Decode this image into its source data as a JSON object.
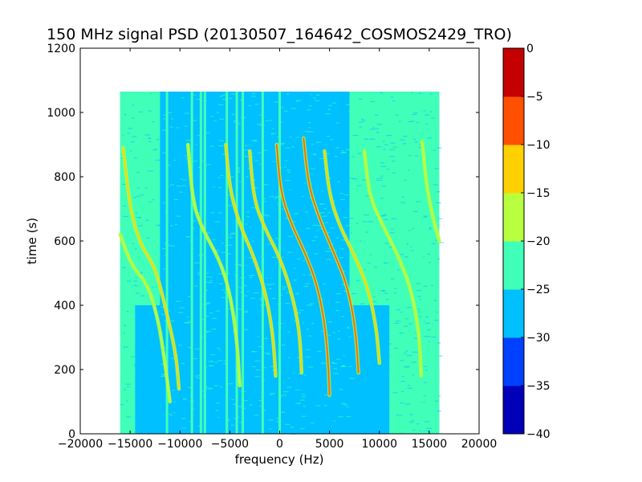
{
  "chart_data": {
    "type": "heatmap",
    "title": "150 MHz signal PSD (20130507_164642_COSMOS2429_TRO)",
    "xlabel": "frequency (Hz)",
    "ylabel": "time (s)",
    "xlim": [
      -20000,
      20000
    ],
    "ylim": [
      0,
      1200
    ],
    "xticks": [
      -20000,
      -15000,
      -10000,
      -5000,
      0,
      5000,
      10000,
      15000,
      20000
    ],
    "xtick_labels": [
      "−20000",
      "−15000",
      "−10000",
      "−5000",
      "0",
      "5000",
      "10000",
      "15000",
      "20000"
    ],
    "yticks": [
      0,
      200,
      400,
      600,
      800,
      1000,
      1200
    ],
    "ytick_labels": [
      "0",
      "200",
      "400",
      "600",
      "800",
      "1000",
      "1200"
    ],
    "data_extent": {
      "x": [
        -16000,
        16000
      ],
      "y": [
        0,
        1065
      ]
    },
    "grid": false,
    "colormap": "jet",
    "colorbar": {
      "levels": [
        -40,
        -35,
        -30,
        -25,
        -20,
        -15,
        -10,
        -5,
        0
      ],
      "labels": [
        "−40",
        "−35",
        "−30",
        "−25",
        "−20",
        "−15",
        "−10",
        "−5",
        "0"
      ],
      "colors": [
        "#0000b8",
        "#0040ff",
        "#00c0ff",
        "#40ffb8",
        "#b8ff40",
        "#ffd000",
        "#ff5000",
        "#c40000"
      ]
    },
    "background_regions": [
      {
        "x": [
          -16000,
          -12000
        ],
        "y": [
          300,
          1065
        ],
        "level": -22.5
      },
      {
        "x": [
          -12000,
          7000
        ],
        "y": [
          400,
          1065
        ],
        "level": -27.5
      },
      {
        "x": [
          7000,
          16000
        ],
        "y": [
          0,
          1065
        ],
        "level": -22.5
      },
      {
        "x": [
          -14500,
          11000
        ],
        "y": [
          0,
          400
        ],
        "level": -27.5
      }
    ],
    "vertical_lines": [
      {
        "x": -11300,
        "level": -22.5
      },
      {
        "x": -8800,
        "level": -22.5
      },
      {
        "x": -7900,
        "level": -22.5
      },
      {
        "x": -7500,
        "level": -22.5
      },
      {
        "x": -5300,
        "level": -22.5
      },
      {
        "x": -4300,
        "level": -22.5
      },
      {
        "x": -3700,
        "level": -22.5
      },
      {
        "x": -1700,
        "level": -22.5
      },
      {
        "x": 0,
        "level": -22.5
      },
      {
        "x": 14300,
        "level": -22.5
      }
    ],
    "series": [
      {
        "points": [
          [
            -15700,
            890
          ],
          [
            -15000,
            700
          ],
          [
            -14000,
            590
          ],
          [
            -12500,
            520
          ],
          [
            -11500,
            400
          ],
          [
            -10400,
            250
          ],
          [
            -10100,
            140
          ]
        ],
        "peak": -10
      },
      {
        "points": [
          [
            -16000,
            620
          ],
          [
            -14800,
            520
          ],
          [
            -13300,
            470
          ],
          [
            -12200,
            360
          ],
          [
            -11500,
            220
          ],
          [
            -11000,
            100
          ]
        ],
        "peak": -17
      },
      {
        "points": [
          [
            -9200,
            900
          ],
          [
            -8700,
            720
          ],
          [
            -7800,
            640
          ],
          [
            -6000,
            540
          ],
          [
            -5000,
            440
          ],
          [
            -4300,
            300
          ],
          [
            -4000,
            150
          ]
        ],
        "peak": -17
      },
      {
        "points": [
          [
            -5400,
            900
          ],
          [
            -5000,
            760
          ],
          [
            -4000,
            650
          ],
          [
            -2700,
            560
          ],
          [
            -1500,
            450
          ],
          [
            -700,
            320
          ],
          [
            -400,
            180
          ]
        ],
        "peak": -10
      },
      {
        "points": [
          [
            -3000,
            880
          ],
          [
            -2600,
            730
          ],
          [
            -1500,
            640
          ],
          [
            0,
            550
          ],
          [
            1200,
            440
          ],
          [
            2000,
            320
          ],
          [
            2200,
            190
          ]
        ],
        "peak": -10
      },
      {
        "points": [
          [
            -300,
            900
          ],
          [
            100,
            750
          ],
          [
            1200,
            650
          ],
          [
            2600,
            560
          ],
          [
            3800,
            460
          ],
          [
            4600,
            330
          ],
          [
            4900,
            200
          ],
          [
            5000,
            120
          ]
        ],
        "peak": -5
      },
      {
        "points": [
          [
            2400,
            920
          ],
          [
            2900,
            770
          ],
          [
            4100,
            660
          ],
          [
            5500,
            560
          ],
          [
            6800,
            460
          ],
          [
            7600,
            330
          ],
          [
            7900,
            190
          ]
        ],
        "peak": -5
      },
      {
        "points": [
          [
            4500,
            880
          ],
          [
            5000,
            740
          ],
          [
            6100,
            640
          ],
          [
            7600,
            550
          ],
          [
            8900,
            450
          ],
          [
            9700,
            330
          ],
          [
            10000,
            220
          ]
        ],
        "peak": -10
      },
      {
        "points": [
          [
            8500,
            880
          ],
          [
            9000,
            740
          ],
          [
            10300,
            650
          ],
          [
            11800,
            560
          ],
          [
            13200,
            450
          ],
          [
            14000,
            310
          ],
          [
            14200,
            180
          ]
        ],
        "peak": -17
      },
      {
        "points": [
          [
            14300,
            910
          ],
          [
            14700,
            780
          ],
          [
            15300,
            680
          ],
          [
            16000,
            600
          ]
        ],
        "peak": -15
      }
    ]
  }
}
